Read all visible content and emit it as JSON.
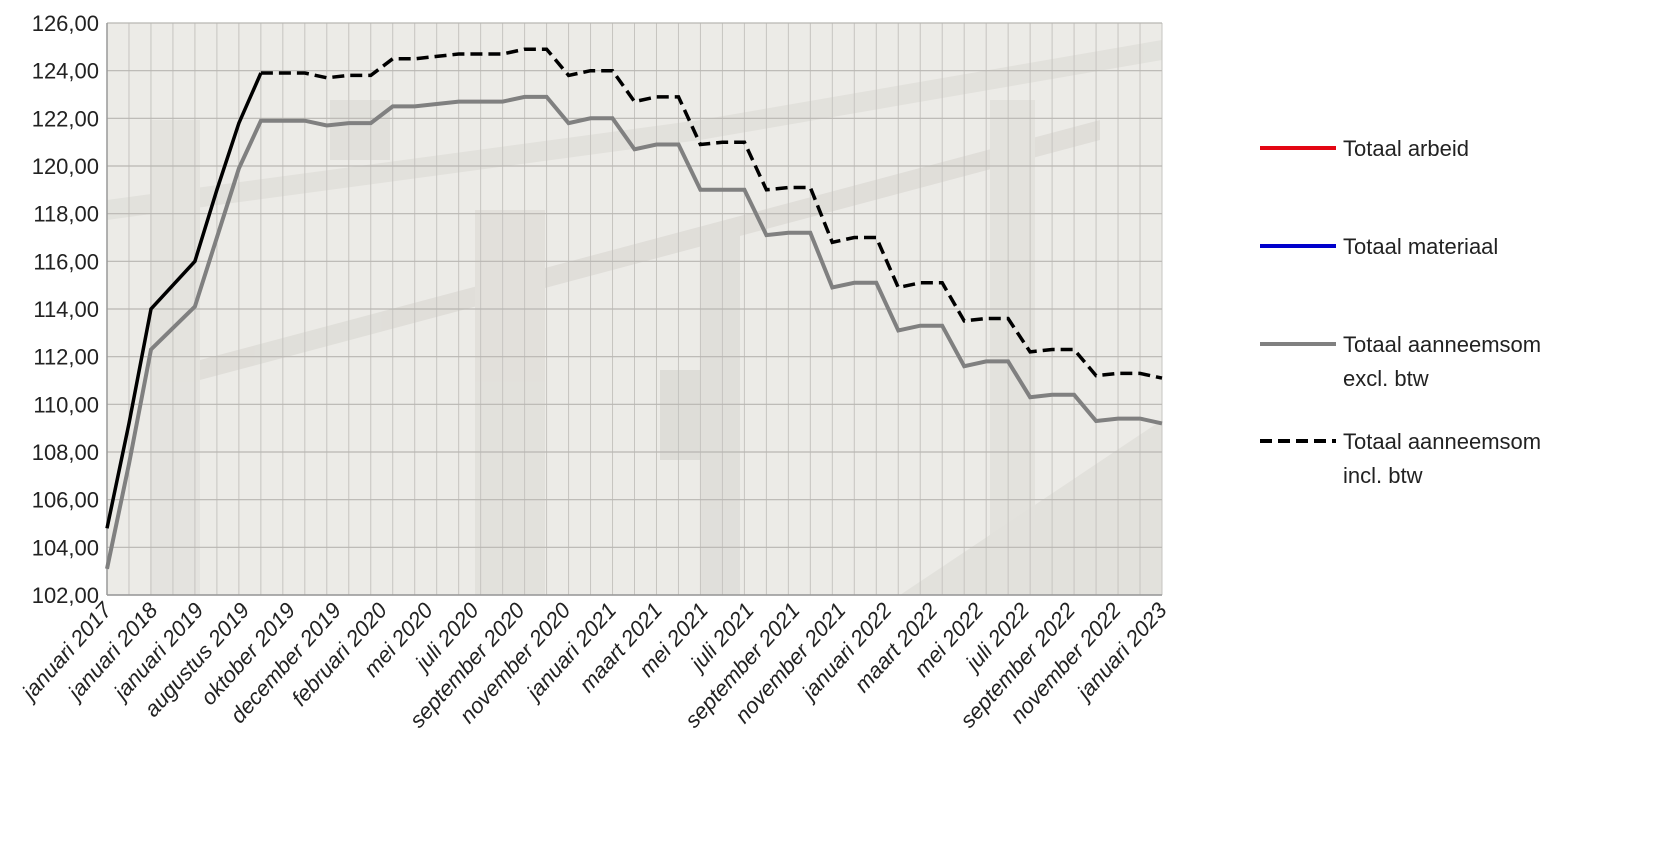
{
  "chart_data": {
    "type": "line",
    "ylim": [
      102,
      126
    ],
    "y_ticks": [
      "102,00",
      "104,00",
      "106,00",
      "108,00",
      "110,00",
      "112,00",
      "114,00",
      "116,00",
      "118,00",
      "120,00",
      "122,00",
      "124,00",
      "126,00"
    ],
    "x_tick_labels": [
      "januari 2017",
      "januari 2018",
      "januari 2019",
      "augustus 2019",
      "oktober 2019",
      "december 2019",
      "februari 2020",
      "mei 2020",
      "juli 2020",
      "september 2020",
      "november 2020",
      "januari 2021",
      "maart 2021",
      "mei 2021",
      "juli 2021",
      "september 2021",
      "november 2021",
      "januari 2022",
      "maart 2022",
      "mei 2022",
      "juli 2022",
      "september 2022",
      "november 2022",
      "januari 2023"
    ],
    "grid": true,
    "legend_position": "right",
    "series": [
      {
        "name": "Totaal arbeid",
        "color": "#e30613",
        "style": "solid",
        "values": []
      },
      {
        "name": "Totaal materiaal",
        "color": "#0000cc",
        "style": "solid",
        "values": []
      },
      {
        "name": "Totaal aanneemsom excl. btw",
        "color": "#808080",
        "style": "solid",
        "values": [
          103.1,
          107.5,
          112.3,
          113.2,
          114.1,
          117.0,
          119.9,
          121.9,
          121.9,
          121.9,
          121.7,
          121.8,
          121.8,
          122.5,
          122.5,
          122.6,
          122.7,
          122.7,
          122.7,
          122.9,
          122.9,
          121.8,
          122.0,
          122.0,
          120.7,
          120.9,
          120.9,
          119.0,
          119.0,
          119.0,
          117.1,
          117.2,
          117.2,
          114.9,
          115.1,
          115.1,
          113.1,
          113.3,
          113.3,
          111.6,
          111.8,
          111.8,
          110.3,
          110.4,
          110.4,
          109.3,
          109.4,
          109.4,
          109.2
        ]
      },
      {
        "name": "Totaal aanneemsom incl. btw",
        "color": "#000000",
        "style": "dashed",
        "values": [
          104.8,
          109.2,
          114.0,
          115.0,
          116.0,
          119.0,
          121.8,
          123.9,
          123.9,
          123.9,
          123.7,
          123.8,
          123.8,
          124.5,
          124.5,
          124.6,
          124.7,
          124.7,
          124.7,
          124.9,
          124.9,
          123.8,
          124.0,
          124.0,
          122.7,
          122.9,
          122.9,
          120.9,
          121.0,
          121.0,
          119.0,
          119.1,
          119.1,
          116.8,
          117.0,
          117.0,
          114.9,
          115.1,
          115.1,
          113.5,
          113.6,
          113.6,
          112.2,
          112.3,
          112.3,
          111.2,
          111.3,
          111.3,
          111.1
        ]
      }
    ],
    "legend_lines": {
      "Totaal arbeid": [
        "Totaal arbeid"
      ],
      "Totaal materiaal": [
        "Totaal materiaal"
      ],
      "Totaal aanneemsom excl. btw": [
        "Totaal aanneemsom",
        "excl. btw"
      ],
      "Totaal aanneemsom incl. btw": [
        "Totaal aanneemsom",
        "incl. btw"
      ]
    }
  }
}
